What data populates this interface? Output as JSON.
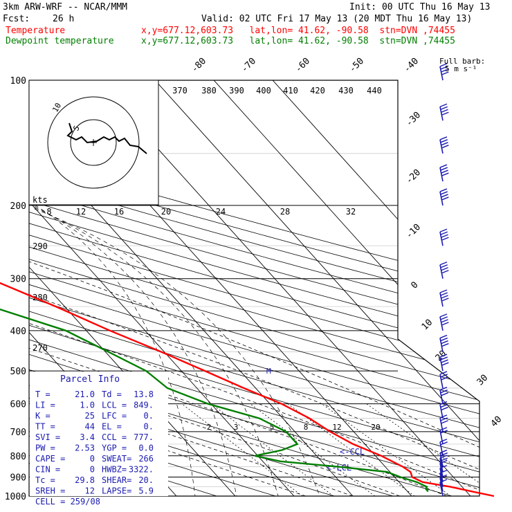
{
  "header": {
    "model": "3km ARW-WRF -- NCAR/MMM",
    "init": "Init: 00 UTC Thu 16 May 13",
    "fcst_label": "Fcst:",
    "fcst_value": "26 h",
    "valid": "Valid: 02 UTC Fri 17 May 13 (20 MDT Thu 16 May 13)",
    "temp_label": "Temperature",
    "temp_info": "x,y=677.12,603.73   lat,lon= 41.62, -90.58  stn=DVN ,74455",
    "dew_label": "Dewpoint temperature",
    "dew_info": "x,y=677.12,603.73   lat,lon= 41.62, -90.58  stn=DVN ,74455"
  },
  "colors": {
    "temperature": "#ff0000",
    "dewpoint": "#007f00",
    "wind": "#1a1ab0",
    "axes": "#000000"
  },
  "barb_legend": {
    "title": "Full barb:",
    "value": "5 m s⁻¹"
  },
  "kts_label": "kts",
  "hodograph_rings": [
    "5",
    "10"
  ],
  "parcel_info": {
    "title": "Parcel Info",
    "rows": [
      [
        "T  =",
        "21.0",
        "Td =",
        "13.8"
      ],
      [
        "LI =",
        "1.0",
        "LCL =",
        "849."
      ],
      [
        "K  =",
        "25",
        "LFC =",
        "0."
      ],
      [
        "TT =",
        "44",
        "EL  =",
        "0."
      ],
      [
        "SVI =",
        "3.4",
        "CCL =",
        "777."
      ],
      [
        "PW =",
        "2.53",
        "YGP =",
        "0.0"
      ],
      [
        "CAPE =",
        "0",
        "SWEAT=",
        "266"
      ],
      [
        "CIN =",
        "0",
        "HWBZ=",
        "3322."
      ],
      [
        "Tc =",
        "29.8",
        "SHEAR=",
        "20."
      ],
      [
        "SREH =",
        "12",
        "LAPSE=",
        "5.9"
      ]
    ],
    "cell": "CELL = 259/08"
  },
  "lcl_labels": [
    "<-CCL",
    "<-LCL"
  ],
  "m_label": "M",
  "chart_data": {
    "type": "line",
    "title": "Skew-T log-P sounding",
    "y_axis": {
      "label": "Pressure (hPa)",
      "scale": "log",
      "ticks": [
        100,
        200,
        300,
        400,
        500,
        600,
        700,
        800,
        900,
        1000
      ]
    },
    "isotherm_labels": [
      "-80",
      "-70",
      "-60",
      "-50",
      "-40",
      "-30",
      "-20",
      "-10",
      "0",
      "10",
      "20",
      "30",
      "40"
    ],
    "theta_labels_top": [
      "370",
      "380",
      "390",
      "400",
      "410",
      "420",
      "430",
      "440"
    ],
    "theta_labels_left": [
      "290",
      "280",
      "270"
    ],
    "mixing_ratio_labels": [
      "2",
      "3",
      "5",
      "8",
      "12",
      "20"
    ],
    "wind_speed_ring_labels": [
      "8",
      "12",
      "16",
      "20",
      "24",
      "28",
      "32"
    ],
    "series": [
      {
        "name": "Temperature",
        "points": [
          [
            1000,
            24.0
          ],
          [
            975,
            21.0
          ],
          [
            950,
            18.0
          ],
          [
            925,
            14.0
          ],
          [
            900,
            13.0
          ],
          [
            875,
            13.5
          ],
          [
            850,
            13.0
          ],
          [
            825,
            12.0
          ],
          [
            800,
            11.0
          ],
          [
            750,
            8.0
          ],
          [
            700,
            6.0
          ],
          [
            650,
            4.5
          ],
          [
            600,
            2.0
          ],
          [
            550,
            -2.0
          ],
          [
            500,
            -6.0
          ],
          [
            450,
            -10.5
          ],
          [
            400,
            -16.0
          ],
          [
            350,
            -21.5
          ],
          [
            300,
            -28.5
          ],
          [
            250,
            -37.5
          ],
          [
            200,
            -48.0
          ],
          [
            175,
            -54.0
          ],
          [
            150,
            -53.5
          ],
          [
            125,
            -50.0
          ],
          [
            100,
            -47.0
          ]
        ]
      },
      {
        "name": "Dewpoint temperature",
        "points": [
          [
            975,
            13.5
          ],
          [
            960,
            13.5
          ],
          [
            950,
            14.0
          ],
          [
            925,
            13.0
          ],
          [
            900,
            11.0
          ],
          [
            875,
            9.5
          ],
          [
            850,
            2.0
          ],
          [
            825,
            -7.0
          ],
          [
            800,
            -10.5
          ],
          [
            775,
            -5.0
          ],
          [
            750,
            -1.5
          ],
          [
            700,
            -1.5
          ],
          [
            650,
            -4.0
          ],
          [
            600,
            -10.5
          ],
          [
            550,
            -15.0
          ],
          [
            500,
            -16.0
          ],
          [
            450,
            -19.5
          ],
          [
            400,
            -23.5
          ],
          [
            350,
            -32.5
          ],
          [
            300,
            -34.5
          ],
          [
            275,
            -39.5
          ],
          [
            250,
            -55.0
          ],
          [
            200,
            -61.0
          ],
          [
            175,
            -67.0
          ],
          [
            150,
            -71.0
          ],
          [
            125,
            -71.5
          ],
          [
            100,
            -71.0
          ]
        ]
      }
    ],
    "wind_barbs": [
      [
        1000,
        10
      ],
      [
        975,
        12
      ],
      [
        950,
        14
      ],
      [
        925,
        16
      ],
      [
        900,
        18
      ],
      [
        875,
        20
      ],
      [
        850,
        22
      ],
      [
        800,
        25
      ],
      [
        750,
        28
      ],
      [
        700,
        30
      ],
      [
        650,
        32
      ],
      [
        600,
        34
      ],
      [
        550,
        38
      ],
      [
        500,
        40
      ],
      [
        450,
        44
      ],
      [
        400,
        46
      ],
      [
        350,
        48
      ],
      [
        300,
        52
      ],
      [
        250,
        56
      ],
      [
        200,
        60
      ],
      [
        175,
        58
      ],
      [
        150,
        56
      ],
      [
        125,
        54
      ],
      [
        100,
        50
      ]
    ]
  }
}
